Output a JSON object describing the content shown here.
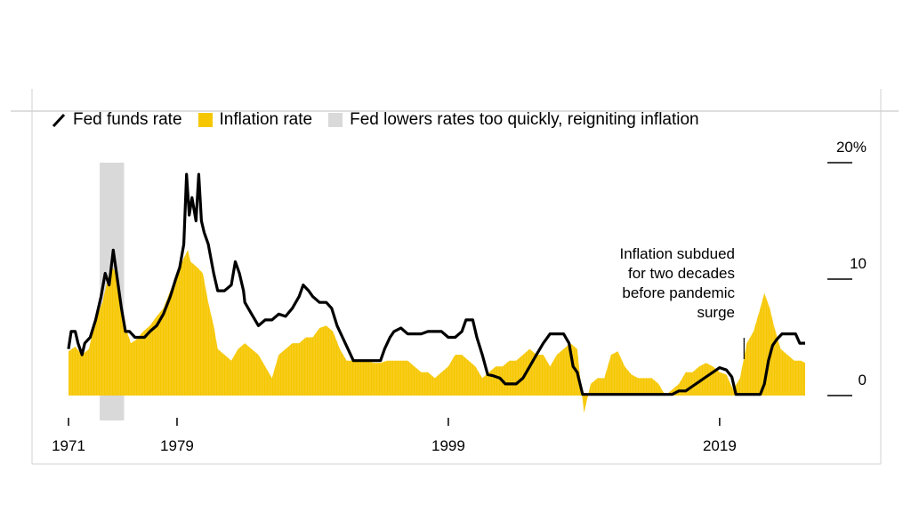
{
  "legend": {
    "fed_funds": "Fed funds rate",
    "inflation": "Inflation rate",
    "shade": "Fed lowers rates too quickly, reigniting inflation"
  },
  "annotation": {
    "line1": "Inflation subdued",
    "line2": "for two decades",
    "line3": "before pandemic",
    "line4": "surge"
  },
  "colors": {
    "fed_line": "#000000",
    "inflation_fill": "#f6c700",
    "shade": "#d9d9d9",
    "axis": "#000000"
  },
  "chart_data": {
    "type": "area",
    "title": "",
    "xlabel": "",
    "ylabel": "",
    "xlim": [
      1971,
      2025.5
    ],
    "ylim": [
      -2.4,
      20
    ],
    "y_ticks": [
      {
        "value": 20,
        "label": "20%"
      },
      {
        "value": 10,
        "label": "10"
      },
      {
        "value": 0,
        "label": "0"
      }
    ],
    "x_ticks": [
      {
        "value": 1971,
        "label": "1971"
      },
      {
        "value": 1979,
        "label": "1979"
      },
      {
        "value": 1999,
        "label": "1999"
      },
      {
        "value": 2019,
        "label": "2019"
      }
    ],
    "shaded_regions": [
      {
        "start": 1973.3,
        "end": 1975.1
      }
    ],
    "annotation_point": {
      "x": 2020.8,
      "y": 4.5
    },
    "series": [
      {
        "name": "Inflation rate",
        "kind": "area",
        "points": [
          [
            1971,
            3.8
          ],
          [
            1971.5,
            4.2
          ],
          [
            1972,
            3.5
          ],
          [
            1972.5,
            4.0
          ],
          [
            1973,
            6.5
          ],
          [
            1973.5,
            8.0
          ],
          [
            1973.9,
            10.0
          ],
          [
            1974.2,
            11.0
          ],
          [
            1974.6,
            10.5
          ],
          [
            1974.9,
            8.0
          ],
          [
            1975.3,
            5.5
          ],
          [
            1975.6,
            4.5
          ],
          [
            1976,
            4.8
          ],
          [
            1976.5,
            5.5
          ],
          [
            1977,
            6.0
          ],
          [
            1977.5,
            6.8
          ],
          [
            1978,
            7.5
          ],
          [
            1978.5,
            9.0
          ],
          [
            1979,
            10.5
          ],
          [
            1979.5,
            11.8
          ],
          [
            1979.8,
            12.5
          ],
          [
            1980,
            11.5
          ],
          [
            1980.5,
            11.0
          ],
          [
            1980.9,
            10.5
          ],
          [
            1981.3,
            8.0
          ],
          [
            1981.7,
            6.0
          ],
          [
            1982,
            4.0
          ],
          [
            1982.5,
            3.5
          ],
          [
            1983,
            3.0
          ],
          [
            1983.5,
            4.0
          ],
          [
            1984,
            4.5
          ],
          [
            1984.5,
            4.0
          ],
          [
            1985,
            3.5
          ],
          [
            1985.5,
            2.5
          ],
          [
            1986,
            1.5
          ],
          [
            1986.5,
            3.5
          ],
          [
            1987,
            4.0
          ],
          [
            1987.5,
            4.5
          ],
          [
            1988,
            4.5
          ],
          [
            1988.5,
            5.0
          ],
          [
            1989,
            5.0
          ],
          [
            1989.5,
            5.8
          ],
          [
            1990,
            6.0
          ],
          [
            1990.5,
            5.5
          ],
          [
            1991,
            4.0
          ],
          [
            1991.5,
            3.0
          ],
          [
            1992,
            3.0
          ],
          [
            1992.5,
            3.0
          ],
          [
            1993,
            3.0
          ],
          [
            1993.5,
            2.8
          ],
          [
            1994,
            2.8
          ],
          [
            1994.5,
            3.0
          ],
          [
            1995,
            3.0
          ],
          [
            1995.5,
            3.0
          ],
          [
            1996,
            3.0
          ],
          [
            1996.5,
            2.5
          ],
          [
            1997,
            2.0
          ],
          [
            1997.5,
            2.0
          ],
          [
            1998,
            1.5
          ],
          [
            1998.5,
            2.0
          ],
          [
            1999,
            2.5
          ],
          [
            1999.5,
            3.5
          ],
          [
            2000,
            3.5
          ],
          [
            2000.5,
            3.0
          ],
          [
            2001,
            2.5
          ],
          [
            2001.5,
            1.5
          ],
          [
            2002,
            2.0
          ],
          [
            2002.5,
            2.5
          ],
          [
            2003,
            2.5
          ],
          [
            2003.5,
            3.0
          ],
          [
            2004,
            3.0
          ],
          [
            2004.5,
            3.5
          ],
          [
            2005,
            4.0
          ],
          [
            2005.5,
            3.5
          ],
          [
            2006,
            3.5
          ],
          [
            2006.5,
            2.5
          ],
          [
            2007,
            3.5
          ],
          [
            2007.5,
            4.0
          ],
          [
            2008,
            4.5
          ],
          [
            2008.5,
            4.0
          ],
          [
            2009,
            -1.5
          ],
          [
            2009.5,
            1.0
          ],
          [
            2010,
            1.5
          ],
          [
            2010.5,
            1.5
          ],
          [
            2011,
            3.5
          ],
          [
            2011.5,
            3.8
          ],
          [
            2012,
            2.5
          ],
          [
            2012.5,
            1.8
          ],
          [
            2013,
            1.5
          ],
          [
            2013.5,
            1.5
          ],
          [
            2014,
            1.5
          ],
          [
            2014.5,
            1.0
          ],
          [
            2015,
            0.0
          ],
          [
            2015.5,
            0.5
          ],
          [
            2016,
            1.0
          ],
          [
            2016.5,
            2.0
          ],
          [
            2017,
            2.0
          ],
          [
            2017.5,
            2.5
          ],
          [
            2018,
            2.8
          ],
          [
            2018.5,
            2.5
          ],
          [
            2019,
            2.0
          ],
          [
            2019.5,
            1.8
          ],
          [
            2020,
            0.5
          ],
          [
            2020.5,
            1.5
          ],
          [
            2021,
            4.5
          ],
          [
            2021.5,
            5.5
          ],
          [
            2022,
            7.5
          ],
          [
            2022.3,
            8.8
          ],
          [
            2022.7,
            7.5
          ],
          [
            2023,
            6.0
          ],
          [
            2023.5,
            4.0
          ],
          [
            2024,
            3.5
          ],
          [
            2024.5,
            3.0
          ],
          [
            2025,
            3.0
          ],
          [
            2025.3,
            2.8
          ]
        ]
      },
      {
        "name": "Fed funds rate",
        "kind": "line",
        "points": [
          [
            1971,
            4.0
          ],
          [
            1971.2,
            5.5
          ],
          [
            1971.5,
            5.5
          ],
          [
            1971.7,
            4.5
          ],
          [
            1972,
            3.5
          ],
          [
            1972.2,
            4.5
          ],
          [
            1972.6,
            5.0
          ],
          [
            1973,
            6.5
          ],
          [
            1973.4,
            8.5
          ],
          [
            1973.7,
            10.5
          ],
          [
            1974,
            9.5
          ],
          [
            1974.3,
            12.5
          ],
          [
            1974.6,
            10.0
          ],
          [
            1974.9,
            7.5
          ],
          [
            1975.2,
            5.5
          ],
          [
            1975.5,
            5.5
          ],
          [
            1975.9,
            5.0
          ],
          [
            1976.2,
            5.0
          ],
          [
            1976.6,
            5.0
          ],
          [
            1977,
            5.5
          ],
          [
            1977.5,
            6.0
          ],
          [
            1978,
            7.0
          ],
          [
            1978.5,
            8.5
          ],
          [
            1978.9,
            10.0
          ],
          [
            1979.2,
            11.0
          ],
          [
            1979.5,
            13.0
          ],
          [
            1979.7,
            19.0
          ],
          [
            1979.9,
            15.5
          ],
          [
            1980.1,
            17.0
          ],
          [
            1980.4,
            15.0
          ],
          [
            1980.6,
            19.0
          ],
          [
            1980.8,
            15.0
          ],
          [
            1981,
            14.0
          ],
          [
            1981.3,
            13.0
          ],
          [
            1981.7,
            10.5
          ],
          [
            1982,
            9.0
          ],
          [
            1982.5,
            9.0
          ],
          [
            1983,
            9.5
          ],
          [
            1983.3,
            11.5
          ],
          [
            1983.6,
            10.5
          ],
          [
            1983.9,
            9.0
          ],
          [
            1984,
            8.0
          ],
          [
            1984.5,
            7.0
          ],
          [
            1985,
            6.0
          ],
          [
            1985.5,
            6.5
          ],
          [
            1986,
            6.5
          ],
          [
            1986.5,
            7.0
          ],
          [
            1987,
            6.8
          ],
          [
            1987.5,
            7.5
          ],
          [
            1988,
            8.5
          ],
          [
            1988.3,
            9.5
          ],
          [
            1988.7,
            9.0
          ],
          [
            1989,
            8.5
          ],
          [
            1989.5,
            8.0
          ],
          [
            1990,
            8.0
          ],
          [
            1990.4,
            7.5
          ],
          [
            1990.8,
            6.0
          ],
          [
            1991.2,
            5.0
          ],
          [
            1991.6,
            4.0
          ],
          [
            1992,
            3.0
          ],
          [
            1992.5,
            3.0
          ],
          [
            1993,
            3.0
          ],
          [
            1993.5,
            3.0
          ],
          [
            1994,
            3.0
          ],
          [
            1994.3,
            4.0
          ],
          [
            1994.7,
            5.0
          ],
          [
            1995,
            5.5
          ],
          [
            1995.5,
            5.8
          ],
          [
            1996,
            5.3
          ],
          [
            1996.5,
            5.3
          ],
          [
            1997,
            5.3
          ],
          [
            1997.5,
            5.5
          ],
          [
            1998,
            5.5
          ],
          [
            1998.5,
            5.5
          ],
          [
            1999,
            5.0
          ],
          [
            1999.5,
            5.0
          ],
          [
            2000,
            5.5
          ],
          [
            2000.3,
            6.5
          ],
          [
            2000.8,
            6.5
          ],
          [
            2001.1,
            5.0
          ],
          [
            2001.5,
            3.5
          ],
          [
            2001.9,
            1.8
          ],
          [
            2002.3,
            1.7
          ],
          [
            2002.8,
            1.5
          ],
          [
            2003.2,
            1.0
          ],
          [
            2003.6,
            1.0
          ],
          [
            2004,
            1.0
          ],
          [
            2004.5,
            1.5
          ],
          [
            2005,
            2.5
          ],
          [
            2005.5,
            3.5
          ],
          [
            2006,
            4.5
          ],
          [
            2006.5,
            5.3
          ],
          [
            2007,
            5.3
          ],
          [
            2007.5,
            5.3
          ],
          [
            2007.9,
            4.5
          ],
          [
            2008.2,
            2.5
          ],
          [
            2008.5,
            2.0
          ],
          [
            2008.9,
            0.1
          ],
          [
            2009.5,
            0.1
          ],
          [
            2010.5,
            0.1
          ],
          [
            2011.5,
            0.1
          ],
          [
            2012.5,
            0.1
          ],
          [
            2013.5,
            0.1
          ],
          [
            2014.5,
            0.1
          ],
          [
            2015.5,
            0.1
          ],
          [
            2016,
            0.4
          ],
          [
            2016.5,
            0.4
          ],
          [
            2017,
            0.8
          ],
          [
            2017.5,
            1.2
          ],
          [
            2018,
            1.6
          ],
          [
            2018.5,
            2.0
          ],
          [
            2019,
            2.4
          ],
          [
            2019.5,
            2.2
          ],
          [
            2019.9,
            1.6
          ],
          [
            2020.2,
            0.1
          ],
          [
            2020.8,
            0.1
          ],
          [
            2021.5,
            0.1
          ],
          [
            2022,
            0.1
          ],
          [
            2022.3,
            1.0
          ],
          [
            2022.6,
            3.0
          ],
          [
            2022.9,
            4.3
          ],
          [
            2023.2,
            4.8
          ],
          [
            2023.6,
            5.3
          ],
          [
            2024.2,
            5.3
          ],
          [
            2024.6,
            5.3
          ],
          [
            2024.9,
            4.5
          ],
          [
            2025.3,
            4.5
          ]
        ]
      }
    ]
  }
}
